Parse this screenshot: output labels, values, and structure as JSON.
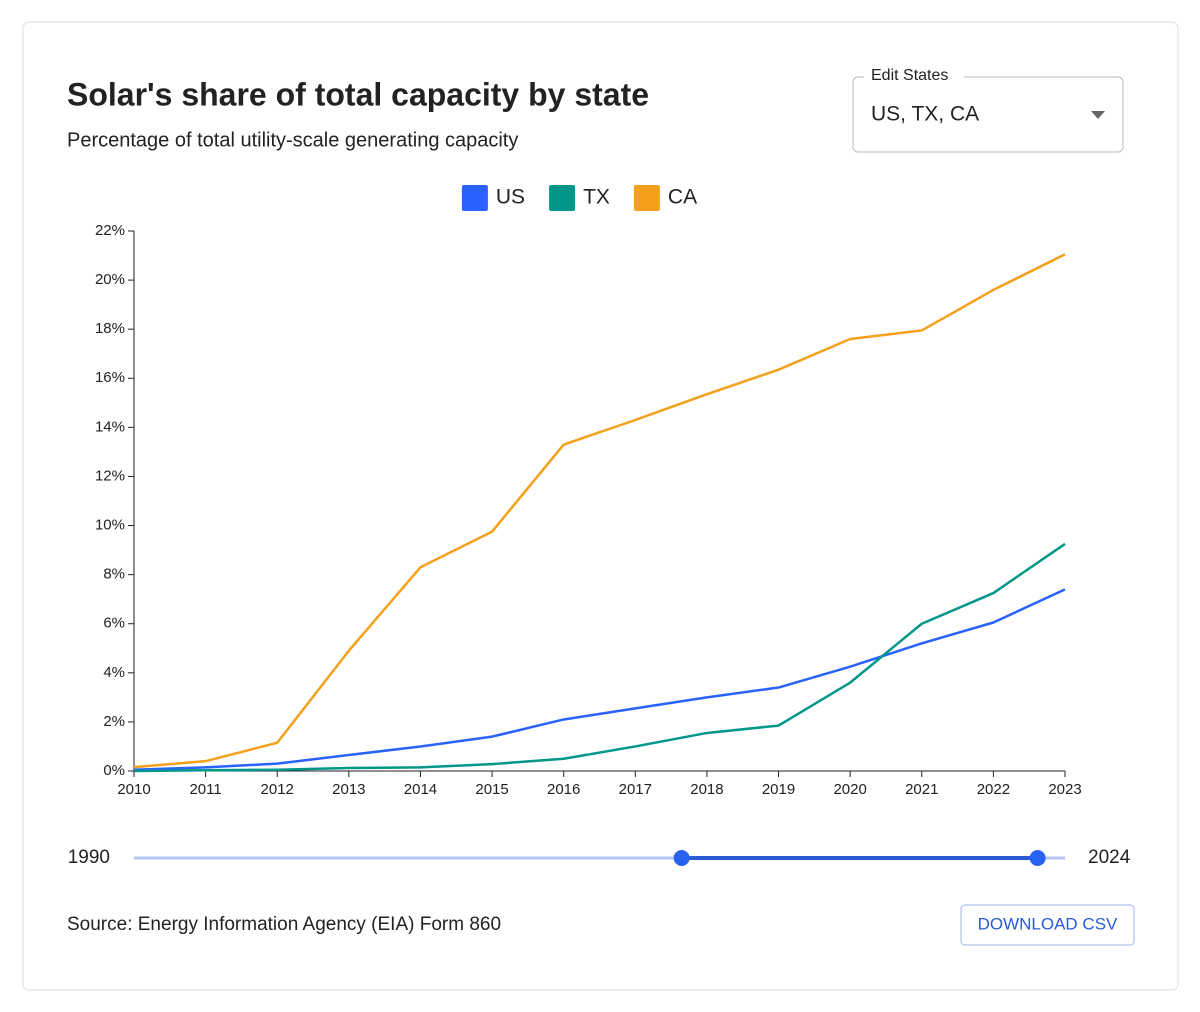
{
  "chart_data": {
    "type": "line",
    "title": "Solar's share of total capacity by state",
    "subtitle": "Percentage of total utility-scale generating capacity",
    "x": [
      2010,
      2011,
      2012,
      2013,
      2014,
      2015,
      2016,
      2017,
      2018,
      2019,
      2020,
      2021,
      2022,
      2023
    ],
    "xlim": [
      2010,
      2023
    ],
    "xticks": [
      2010,
      2011,
      2012,
      2013,
      2014,
      2015,
      2016,
      2017,
      2018,
      2019,
      2020,
      2021,
      2022,
      2023
    ],
    "ylim": [
      0,
      22
    ],
    "yticks": [
      {
        "value": 0,
        "label": "0%"
      },
      {
        "value": 2,
        "label": "2%"
      },
      {
        "value": 4,
        "label": "4%"
      },
      {
        "value": 6,
        "label": "6%"
      },
      {
        "value": 8,
        "label": "8%"
      },
      {
        "value": 10,
        "label": "10%"
      },
      {
        "value": 12,
        "label": "12%"
      },
      {
        "value": 14,
        "label": "14%"
      },
      {
        "value": 16,
        "label": "16%"
      },
      {
        "value": 18,
        "label": "18%"
      },
      {
        "value": 20,
        "label": "20%"
      },
      {
        "value": 22,
        "label": "22%"
      }
    ],
    "legend": "top",
    "series": [
      {
        "name": "US",
        "color": "#2962ff",
        "values": [
          0.05,
          0.15,
          0.3,
          0.65,
          1.0,
          1.4,
          2.1,
          2.55,
          3.0,
          3.4,
          4.25,
          5.2,
          6.05,
          7.4
        ]
      },
      {
        "name": "TX",
        "color": "#00968a",
        "values": [
          0.0,
          0.03,
          0.05,
          0.12,
          0.15,
          0.28,
          0.5,
          1.0,
          1.55,
          1.85,
          3.6,
          6.0,
          7.25,
          9.25
        ]
      },
      {
        "name": "CA",
        "color": "#f5a01a",
        "values": [
          0.16,
          0.4,
          1.15,
          4.9,
          8.3,
          9.75,
          13.3,
          14.3,
          15.35,
          16.35,
          17.6,
          17.95,
          19.6,
          21.05
        ]
      }
    ]
  },
  "state_select": {
    "label": "Edit States",
    "value": "US, TX, CA"
  },
  "slider": {
    "min": 1990,
    "max": 2024,
    "values": [
      2010,
      2023
    ]
  },
  "source": "Source: Energy Information Agency (EIA) Form 860",
  "download_button": "DOWNLOAD CSV"
}
